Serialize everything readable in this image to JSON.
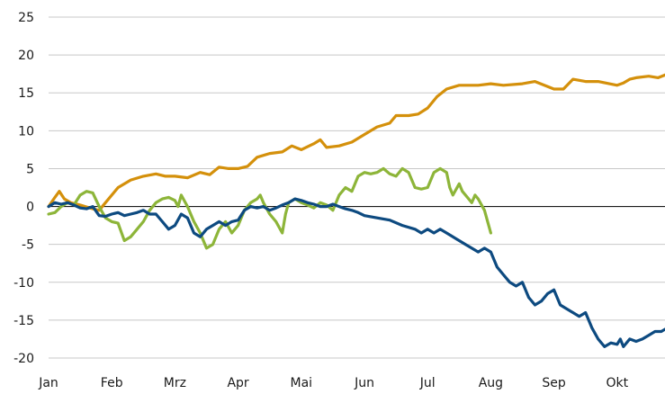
{
  "chart_data": {
    "type": "line",
    "title": "",
    "xlabel": "",
    "ylabel": "",
    "ylim": [
      -20,
      25
    ],
    "yticks": [
      25,
      20,
      15,
      10,
      5,
      0,
      -5,
      -10,
      -15,
      -20
    ],
    "xlim": [
      0,
      9.8
    ],
    "months": [
      {
        "label": "Jan",
        "x": 0
      },
      {
        "label": "Feb",
        "x": 1
      },
      {
        "label": "Mrz",
        "x": 2
      },
      {
        "label": "Apr",
        "x": 3
      },
      {
        "label": "Mai",
        "x": 4
      },
      {
        "label": "Jun",
        "x": 5
      },
      {
        "label": "Jul",
        "x": 6
      },
      {
        "label": "Aug",
        "x": 7
      },
      {
        "label": "Sep",
        "x": 8
      },
      {
        "label": "Okt",
        "x": 9
      }
    ],
    "grid": "horizontal",
    "legend": "none",
    "series": [
      {
        "color": "#d4900b",
        "points": [
          [
            0,
            0
          ],
          [
            0.1,
            1.2
          ],
          [
            0.17,
            2.0
          ],
          [
            0.25,
            1.0
          ],
          [
            0.35,
            0.5
          ],
          [
            0.5,
            0.2
          ],
          [
            0.7,
            -0.3
          ],
          [
            0.8,
            -0.5
          ],
          [
            0.9,
            0.5
          ],
          [
            1.0,
            1.5
          ],
          [
            1.1,
            2.5
          ],
          [
            1.3,
            3.5
          ],
          [
            1.5,
            4.0
          ],
          [
            1.7,
            4.3
          ],
          [
            1.85,
            4.0
          ],
          [
            2.0,
            4.0
          ],
          [
            2.2,
            3.8
          ],
          [
            2.4,
            4.5
          ],
          [
            2.55,
            4.2
          ],
          [
            2.7,
            5.2
          ],
          [
            2.85,
            5.0
          ],
          [
            3.0,
            5.0
          ],
          [
            3.15,
            5.3
          ],
          [
            3.3,
            6.5
          ],
          [
            3.5,
            7.0
          ],
          [
            3.7,
            7.2
          ],
          [
            3.85,
            8.0
          ],
          [
            4.0,
            7.5
          ],
          [
            4.2,
            8.3
          ],
          [
            4.3,
            8.8
          ],
          [
            4.4,
            7.8
          ],
          [
            4.6,
            8.0
          ],
          [
            4.8,
            8.5
          ],
          [
            5.0,
            9.5
          ],
          [
            5.2,
            10.5
          ],
          [
            5.4,
            11.0
          ],
          [
            5.5,
            12.0
          ],
          [
            5.7,
            12.0
          ],
          [
            5.85,
            12.2
          ],
          [
            6.0,
            13.0
          ],
          [
            6.15,
            14.5
          ],
          [
            6.3,
            15.5
          ],
          [
            6.5,
            16.0
          ],
          [
            6.8,
            16.0
          ],
          [
            7.0,
            16.2
          ],
          [
            7.2,
            16.0
          ],
          [
            7.5,
            16.2
          ],
          [
            7.7,
            16.5
          ],
          [
            8.0,
            15.5
          ],
          [
            8.15,
            15.5
          ],
          [
            8.3,
            16.8
          ],
          [
            8.5,
            16.5
          ],
          [
            8.7,
            16.5
          ],
          [
            9.0,
            16.0
          ],
          [
            9.1,
            16.3
          ],
          [
            9.2,
            16.8
          ],
          [
            9.3,
            17.0
          ],
          [
            9.5,
            17.2
          ],
          [
            9.65,
            17.0
          ],
          [
            9.8,
            17.5
          ]
        ]
      },
      {
        "color": "#8db539",
        "points": [
          [
            0,
            -1.0
          ],
          [
            0.1,
            -0.8
          ],
          [
            0.2,
            0
          ],
          [
            0.3,
            0.5
          ],
          [
            0.4,
            0.2
          ],
          [
            0.5,
            1.5
          ],
          [
            0.6,
            2.0
          ],
          [
            0.7,
            1.8
          ],
          [
            0.8,
            0
          ],
          [
            0.9,
            -1.5
          ],
          [
            1.0,
            -2.0
          ],
          [
            1.1,
            -2.2
          ],
          [
            1.2,
            -4.5
          ],
          [
            1.3,
            -4.0
          ],
          [
            1.4,
            -3.0
          ],
          [
            1.5,
            -2.0
          ],
          [
            1.6,
            -0.5
          ],
          [
            1.7,
            0.5
          ],
          [
            1.8,
            1.0
          ],
          [
            1.9,
            1.2
          ],
          [
            2.0,
            0.8
          ],
          [
            2.05,
            0
          ],
          [
            2.1,
            1.5
          ],
          [
            2.2,
            0
          ],
          [
            2.3,
            -2.0
          ],
          [
            2.4,
            -3.5
          ],
          [
            2.5,
            -5.5
          ],
          [
            2.6,
            -5.0
          ],
          [
            2.7,
            -3.0
          ],
          [
            2.8,
            -2.0
          ],
          [
            2.9,
            -3.5
          ],
          [
            3.0,
            -2.5
          ],
          [
            3.1,
            -0.5
          ],
          [
            3.2,
            0.5
          ],
          [
            3.3,
            1.0
          ],
          [
            3.35,
            1.5
          ],
          [
            3.4,
            0.5
          ],
          [
            3.5,
            -1.0
          ],
          [
            3.6,
            -2.0
          ],
          [
            3.7,
            -3.5
          ],
          [
            3.75,
            -1.0
          ],
          [
            3.8,
            0.5
          ],
          [
            3.9,
            1.0
          ],
          [
            4.0,
            0.5
          ],
          [
            4.1,
            0.2
          ],
          [
            4.2,
            -0.2
          ],
          [
            4.3,
            0.5
          ],
          [
            4.4,
            0.2
          ],
          [
            4.5,
            -0.5
          ],
          [
            4.6,
            1.5
          ],
          [
            4.7,
            2.5
          ],
          [
            4.8,
            2.0
          ],
          [
            4.9,
            4.0
          ],
          [
            5.0,
            4.5
          ],
          [
            5.1,
            4.3
          ],
          [
            5.2,
            4.5
          ],
          [
            5.3,
            5.0
          ],
          [
            5.4,
            4.3
          ],
          [
            5.5,
            4.0
          ],
          [
            5.6,
            5.0
          ],
          [
            5.7,
            4.5
          ],
          [
            5.8,
            2.5
          ],
          [
            5.9,
            2.3
          ],
          [
            6.0,
            2.5
          ],
          [
            6.1,
            4.5
          ],
          [
            6.2,
            5.0
          ],
          [
            6.3,
            4.5
          ],
          [
            6.35,
            2.5
          ],
          [
            6.4,
            1.5
          ],
          [
            6.5,
            3.0
          ],
          [
            6.55,
            2.0
          ],
          [
            6.6,
            1.5
          ],
          [
            6.7,
            0.5
          ],
          [
            6.75,
            1.5
          ],
          [
            6.8,
            1.0
          ],
          [
            6.9,
            -0.5
          ],
          [
            7.0,
            -3.5
          ]
        ]
      },
      {
        "color": "#0d4a80",
        "points": [
          [
            0,
            0
          ],
          [
            0.1,
            0.5
          ],
          [
            0.2,
            0.3
          ],
          [
            0.3,
            0.5
          ],
          [
            0.4,
            0.2
          ],
          [
            0.5,
            -0.2
          ],
          [
            0.6,
            -0.3
          ],
          [
            0.7,
            0
          ],
          [
            0.8,
            -1.2
          ],
          [
            0.9,
            -1.3
          ],
          [
            1.0,
            -1.0
          ],
          [
            1.1,
            -0.8
          ],
          [
            1.2,
            -1.2
          ],
          [
            1.3,
            -1.0
          ],
          [
            1.4,
            -0.8
          ],
          [
            1.5,
            -0.5
          ],
          [
            1.6,
            -1.0
          ],
          [
            1.7,
            -1.0
          ],
          [
            1.8,
            -2.0
          ],
          [
            1.9,
            -3.0
          ],
          [
            2.0,
            -2.5
          ],
          [
            2.1,
            -1.0
          ],
          [
            2.2,
            -1.5
          ],
          [
            2.3,
            -3.5
          ],
          [
            2.4,
            -4.0
          ],
          [
            2.5,
            -3.0
          ],
          [
            2.6,
            -2.5
          ],
          [
            2.7,
            -2.0
          ],
          [
            2.8,
            -2.5
          ],
          [
            2.9,
            -2.0
          ],
          [
            3.0,
            -1.8
          ],
          [
            3.1,
            -0.5
          ],
          [
            3.2,
            0
          ],
          [
            3.3,
            -0.2
          ],
          [
            3.4,
            0
          ],
          [
            3.5,
            -0.5
          ],
          [
            3.6,
            -0.2
          ],
          [
            3.7,
            0.2
          ],
          [
            3.8,
            0.5
          ],
          [
            3.9,
            1.0
          ],
          [
            4.0,
            0.8
          ],
          [
            4.1,
            0.5
          ],
          [
            4.2,
            0.3
          ],
          [
            4.3,
            0
          ],
          [
            4.4,
            0
          ],
          [
            4.5,
            0.3
          ],
          [
            4.6,
            0
          ],
          [
            4.7,
            -0.3
          ],
          [
            4.8,
            -0.5
          ],
          [
            4.9,
            -0.8
          ],
          [
            5.0,
            -1.2
          ],
          [
            5.2,
            -1.5
          ],
          [
            5.4,
            -1.8
          ],
          [
            5.6,
            -2.5
          ],
          [
            5.8,
            -3.0
          ],
          [
            5.9,
            -3.5
          ],
          [
            6.0,
            -3.0
          ],
          [
            6.1,
            -3.5
          ],
          [
            6.2,
            -3.0
          ],
          [
            6.3,
            -3.5
          ],
          [
            6.4,
            -4.0
          ],
          [
            6.5,
            -4.5
          ],
          [
            6.6,
            -5.0
          ],
          [
            6.7,
            -5.5
          ],
          [
            6.8,
            -6.0
          ],
          [
            6.9,
            -5.5
          ],
          [
            7.0,
            -6.0
          ],
          [
            7.1,
            -8.0
          ],
          [
            7.2,
            -9.0
          ],
          [
            7.3,
            -10.0
          ],
          [
            7.4,
            -10.5
          ],
          [
            7.5,
            -10.0
          ],
          [
            7.6,
            -12.0
          ],
          [
            7.7,
            -13.0
          ],
          [
            7.8,
            -12.5
          ],
          [
            7.9,
            -11.5
          ],
          [
            8.0,
            -11.0
          ],
          [
            8.1,
            -13.0
          ],
          [
            8.2,
            -13.5
          ],
          [
            8.3,
            -14.0
          ],
          [
            8.4,
            -14.5
          ],
          [
            8.5,
            -14.0
          ],
          [
            8.6,
            -16.0
          ],
          [
            8.7,
            -17.5
          ],
          [
            8.8,
            -18.5
          ],
          [
            8.9,
            -18.0
          ],
          [
            9.0,
            -18.2
          ],
          [
            9.05,
            -17.5
          ],
          [
            9.1,
            -18.5
          ],
          [
            9.2,
            -17.5
          ],
          [
            9.3,
            -17.8
          ],
          [
            9.4,
            -17.5
          ],
          [
            9.5,
            -17.0
          ],
          [
            9.6,
            -16.5
          ],
          [
            9.7,
            -16.5
          ],
          [
            9.8,
            -16.0
          ]
        ]
      }
    ]
  }
}
